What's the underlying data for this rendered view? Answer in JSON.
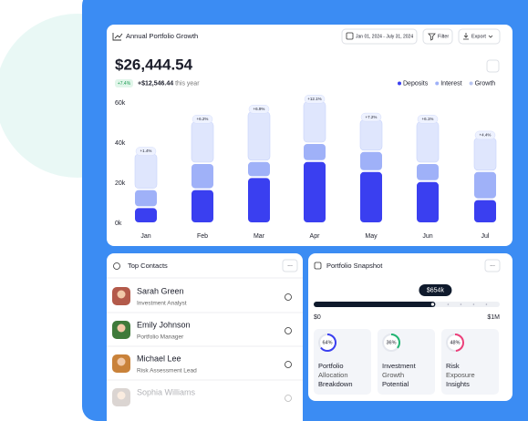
{
  "header": {
    "title": "Annual Portfolio Growth",
    "date_range": "Jan 01, 2024 - July 31, 2024",
    "filter": "Filter",
    "export": "Export"
  },
  "summary": {
    "total": "$26,444.54",
    "badge": "+7.4%",
    "change": "+$12,546.44",
    "change_suffix": "this year"
  },
  "chart": {
    "type": "bar",
    "stacked": true,
    "categories": [
      "Jan",
      "Feb",
      "Mar",
      "Apr",
      "May",
      "Jun",
      "Jul"
    ],
    "series": [
      {
        "name": "Deposits",
        "color": "#3a3ff0",
        "values": [
          8,
          17,
          23,
          31,
          26,
          21,
          12
        ]
      },
      {
        "name": "Interest",
        "color": "#9fb1f8",
        "values": [
          9,
          13,
          8,
          9,
          10,
          9,
          14
        ]
      },
      {
        "name": "Growth",
        "color": "#dfe6fd",
        "values": [
          18,
          21,
          25,
          21,
          16,
          21,
          17
        ]
      }
    ],
    "badges": [
      "+1.4%",
      "+6.2%",
      "+6.9%",
      "+12.1%",
      "+7.2%",
      "+6.1%",
      "+4.4%"
    ],
    "ylim": [
      0,
      60
    ],
    "yticks": [
      {
        "value": 0,
        "label": "0k"
      },
      {
        "value": 20,
        "label": "20k"
      },
      {
        "value": 40,
        "label": "40k"
      },
      {
        "value": 60,
        "label": "60k"
      }
    ]
  },
  "contacts": {
    "title": "Top Contacts",
    "more": "...",
    "items": [
      {
        "name": "Sarah Green",
        "role": "Investment Analyst"
      },
      {
        "name": "Emily Johnson",
        "role": "Portfolio Manager"
      },
      {
        "name": "Michael Lee",
        "role": "Risk Assessment Lead"
      },
      {
        "name": "Sophia Williams"
      }
    ]
  },
  "snapshot": {
    "title": "Portfolio Snapshot",
    "more": "...",
    "slider": {
      "value": 654,
      "label": "$654k",
      "min": {
        "value": 0,
        "label": "$0"
      },
      "max": {
        "value": 1000,
        "label": "$1M"
      }
    },
    "cards": [
      {
        "percent": 64,
        "percent_label": "64%",
        "color": "#3a3ff0",
        "lines": [
          "Portfolio",
          "Allocation",
          "Breakdown"
        ]
      },
      {
        "percent": 36,
        "percent_label": "36%",
        "color": "#22b573",
        "lines": [
          "Investment",
          "Growth",
          "Potential"
        ]
      },
      {
        "percent": 48,
        "percent_label": "48%",
        "color": "#ec3f7a",
        "lines": [
          "Risk",
          "Exposure",
          "Insights"
        ]
      }
    ]
  }
}
